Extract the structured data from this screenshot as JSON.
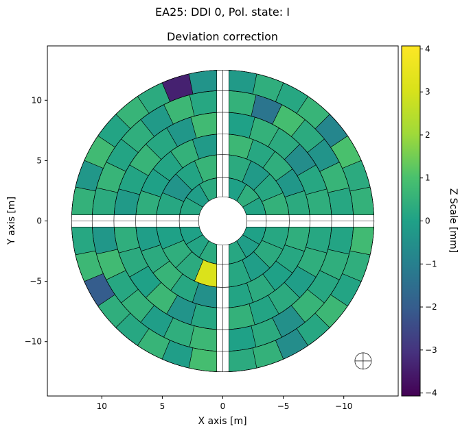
{
  "figure": {
    "suptitle": "EA25: DDI 0, Pol. state: I",
    "title": "Deviation correction"
  },
  "chart_data": {
    "type": "heatmap",
    "title": "Deviation correction",
    "xlabel": "X axis [m]",
    "ylabel": "Y axis [m]",
    "xlim": [
      14.5,
      -14.5
    ],
    "ylim": [
      -14.5,
      14.5
    ],
    "x_inverted": true,
    "xticks": [
      10,
      5,
      0,
      -5,
      -10
    ],
    "xtick_labels": [
      "10",
      "5",
      "0",
      "−5",
      "−10"
    ],
    "yticks": [
      -10,
      -5,
      0,
      5,
      10
    ],
    "ytick_labels": [
      "−10",
      "−5",
      "0",
      "5",
      "10"
    ],
    "grid": false,
    "colorbar": {
      "label": "Z Scale [mm]",
      "range": [
        -4.07,
        4.07
      ],
      "ticks": [
        -4,
        -3,
        -2,
        -1,
        0,
        1,
        2,
        3,
        4
      ],
      "tick_labels": [
        "−4",
        "−3",
        "−2",
        "−1",
        "0",
        "1",
        "2",
        "3",
        "4"
      ],
      "colormap": "viridis"
    },
    "dish": {
      "ring_radii_m": [
        2.0,
        3.6,
        5.5,
        7.2,
        9.0,
        10.8,
        12.5
      ],
      "panel_deviations_mm": [
        [
          0.1,
          0.4,
          0.0,
          0.3,
          -0.1,
          0.2,
          0.0,
          0.1,
          0.3,
          0.2,
          -0.1,
          0.0
        ],
        [
          0.5,
          0.2,
          -0.2,
          0.3,
          0.6,
          0.1,
          -0.4,
          0.2,
          0.0,
          0.4,
          0.3,
          3.1,
          0.2,
          -0.1,
          0.3,
          0.2
        ],
        [
          0.3,
          -0.3,
          0.4,
          0.2,
          0.7,
          -0.2,
          0.5,
          0.1,
          0.0,
          0.4,
          -0.1,
          0.3,
          0.6,
          0.2,
          -0.5,
          0.1,
          0.3,
          0.0,
          0.2,
          0.4
        ],
        [
          0.4,
          0.2,
          -0.6,
          0.3,
          0.5,
          0.0,
          0.8,
          -0.3,
          0.2,
          0.6,
          0.1,
          -0.2,
          0.4,
          0.3,
          0.0,
          0.7,
          -0.4,
          0.2,
          0.5,
          0.1,
          0.3,
          -0.1,
          0.4,
          0.2
        ],
        [
          0.2,
          0.6,
          -0.4,
          0.3,
          0.9,
          -1.3,
          0.5,
          0.2,
          0.7,
          -0.2,
          0.4,
          0.1,
          0.6,
          0.3,
          -0.3,
          0.8,
          0.2,
          0.5,
          -0.1,
          0.4,
          0.7,
          0.0,
          0.3,
          -0.5,
          0.6,
          0.2,
          0.4,
          0.1
        ],
        [
          0.5,
          0.3,
          1.0,
          -0.8,
          0.6,
          0.2,
          0.4,
          -0.2,
          -0.4,
          -3.4,
          0.3,
          0.6,
          0.1,
          0.8,
          -0.3,
          0.5,
          0.2,
          0.7,
          -2.0,
          0.4,
          0.2,
          0.6,
          -0.1,
          0.9,
          0.3,
          0.5,
          -0.6,
          0.2,
          0.7,
          0.1,
          0.4,
          0.8
        ]
      ]
    }
  }
}
